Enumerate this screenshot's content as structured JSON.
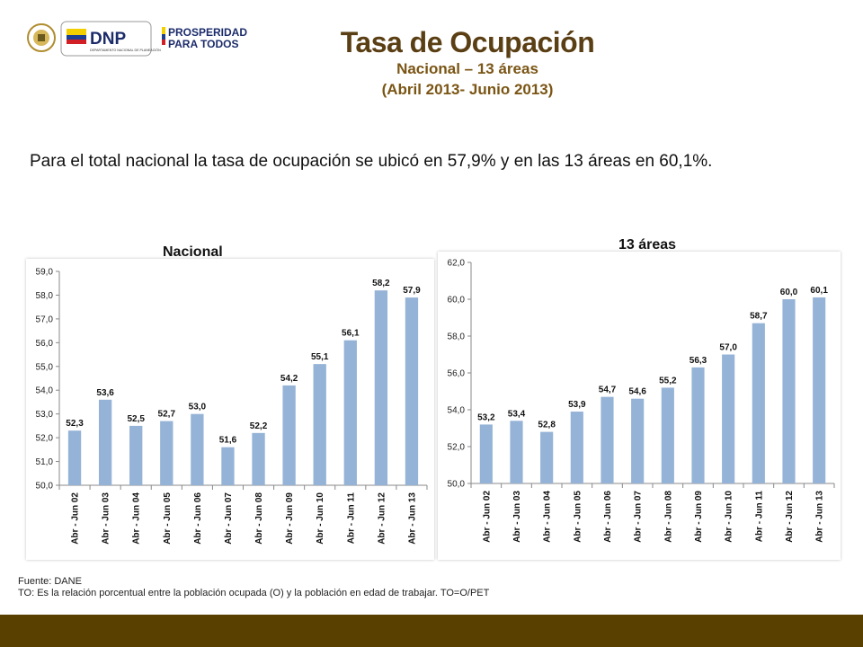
{
  "header": {
    "title": "Tasa de Ocupación",
    "subtitle": "Nacional – 13 áreas",
    "period": "(Abril 2013- Junio 2013)"
  },
  "logos": {
    "dnp_text": "DNP",
    "dnp_subtext": "DEPARTAMENTO NACIONAL DE PLANEACIÓN",
    "prosperidad_line1": "PROSPERIDAD",
    "prosperidad_line2": "PARA TODOS"
  },
  "summary": "Para el total nacional la tasa de ocupación se ubicó en 57,9% y en las 13 áreas en 60,1%.",
  "colors": {
    "bar": "#95b3d7",
    "title": "#5b3f14",
    "footer": "#5a4000"
  },
  "chart_data": [
    {
      "type": "bar",
      "title": "Nacional",
      "categories": [
        "Abr - Jun 02",
        "Abr - Jun 03",
        "Abr - Jun 04",
        "Abr - Jun 05",
        "Abr - Jun 06",
        "Abr - Jun 07",
        "Abr - Jun 08",
        "Abr - Jun 09",
        "Abr - Jun 10",
        "Abr - Jun 11",
        "Abr - Jun 12",
        "Abr - Jun 13"
      ],
      "values": [
        52.3,
        53.6,
        52.5,
        52.7,
        53.0,
        51.6,
        52.2,
        54.2,
        55.1,
        56.1,
        58.2,
        57.9
      ],
      "value_labels": [
        "52,3",
        "53,6",
        "52,5",
        "52,7",
        "53,0",
        "51,6",
        "52,2",
        "54,2",
        "55,1",
        "56,1",
        "58,2",
        "57,9"
      ],
      "ylim": [
        50.0,
        59.0
      ],
      "yticks": [
        50.0,
        51.0,
        52.0,
        53.0,
        54.0,
        55.0,
        56.0,
        57.0,
        58.0,
        59.0
      ],
      "ytick_labels": [
        "50,0",
        "51,0",
        "52,0",
        "53,0",
        "54,0",
        "55,0",
        "56,0",
        "57,0",
        "58,0",
        "59,0"
      ],
      "grid": false,
      "legend": "none"
    },
    {
      "type": "bar",
      "title": "13 áreas",
      "categories": [
        "Abr - Jun 02",
        "Abr - Jun 03",
        "Abr - Jun 04",
        "Abr - Jun 05",
        "Abr - Jun 06",
        "Abr - Jun 07",
        "Abr - Jun 08",
        "Abr - Jun 09",
        "Abr - Jun 10",
        "Abr - Jun 11",
        "Abr - Jun 12",
        "Abr - Jun 13"
      ],
      "values": [
        53.2,
        53.4,
        52.8,
        53.9,
        54.7,
        54.6,
        55.2,
        56.3,
        57.0,
        58.7,
        60.0,
        60.1
      ],
      "value_labels": [
        "53,2",
        "53,4",
        "52,8",
        "53,9",
        "54,7",
        "54,6",
        "55,2",
        "56,3",
        "57,0",
        "58,7",
        "60,0",
        "60,1"
      ],
      "ylim": [
        50.0,
        62.0
      ],
      "yticks": [
        50.0,
        52.0,
        54.0,
        56.0,
        58.0,
        60.0,
        62.0
      ],
      "ytick_labels": [
        "50,0",
        "52,0",
        "54,0",
        "56,0",
        "58,0",
        "60,0",
        "62,0"
      ],
      "grid": false,
      "legend": "none"
    }
  ],
  "footnotes": {
    "source": "Fuente: DANE",
    "definition": "TO: Es la relación porcentual entre la población ocupada (O) y la población  en edad de trabajar. TO=O/PET"
  }
}
